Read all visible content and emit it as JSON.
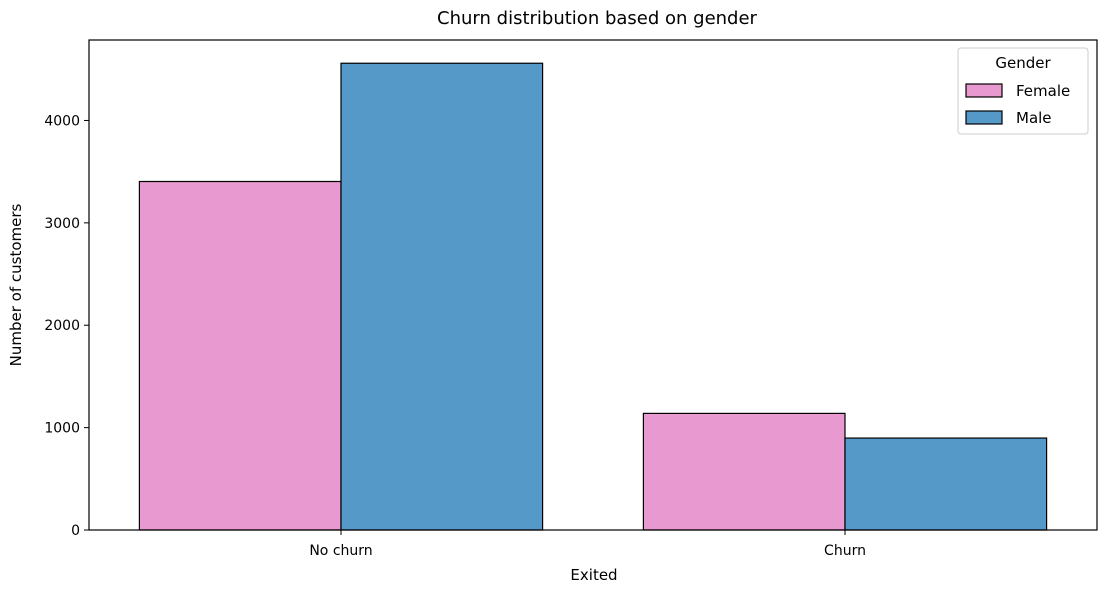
{
  "chart_data": {
    "type": "bar",
    "title": "Churn distribution based on gender",
    "xlabel": "Exited",
    "ylabel": "Number of customers",
    "categories": [
      "No churn",
      "Churn"
    ],
    "series": [
      {
        "name": "Female",
        "values": [
          3404,
          1139
        ],
        "color": "#e899cf"
      },
      {
        "name": "Male",
        "values": [
          4559,
          898
        ],
        "color": "#5499c7"
      }
    ],
    "ylim": [
      0,
      4786
    ],
    "yticks": [
      0,
      1000,
      2000,
      3000,
      4000
    ],
    "legend": {
      "title": "Gender",
      "position": "top-right"
    },
    "grid": false
  }
}
